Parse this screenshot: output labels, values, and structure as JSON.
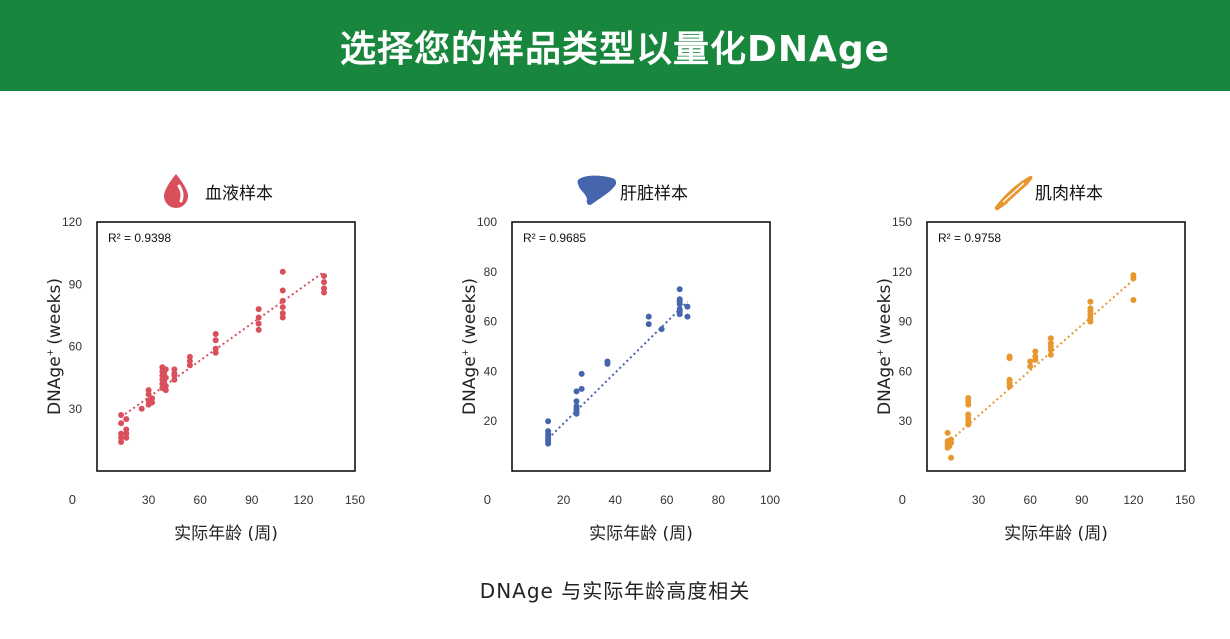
{
  "header": {
    "title": "选择您的样品类型以量化DNAge"
  },
  "caption": "DNAge  与实际年龄高度相关",
  "chart_data": [
    {
      "type": "scatter",
      "title": "血液样本",
      "icon": "blood-drop-icon",
      "color": "#d94f5c",
      "r2_label": "R² = 0.9398",
      "xlabel": "实际年龄 (周)",
      "ylabel": "DNAge",
      "ylabel_suffix": "(weeks)",
      "xlim": [
        0,
        150
      ],
      "ylim": [
        0,
        120
      ],
      "x_origin_label": "0",
      "xticks": [
        30,
        60,
        90,
        120,
        150
      ],
      "yticks": [
        30,
        60,
        90,
        120
      ],
      "trendline": [
        [
          14,
          26
        ],
        [
          132,
          96
        ]
      ],
      "points": [
        [
          14,
          27
        ],
        [
          14,
          23
        ],
        [
          14,
          18
        ],
        [
          14,
          16
        ],
        [
          14,
          14
        ],
        [
          17,
          25
        ],
        [
          17,
          20
        ],
        [
          17,
          18
        ],
        [
          17,
          16
        ],
        [
          26,
          30
        ],
        [
          30,
          39
        ],
        [
          30,
          37
        ],
        [
          30,
          34
        ],
        [
          30,
          32
        ],
        [
          32,
          35
        ],
        [
          32,
          33
        ],
        [
          38,
          50
        ],
        [
          38,
          48
        ],
        [
          38,
          46
        ],
        [
          38,
          44
        ],
        [
          38,
          42
        ],
        [
          38,
          40
        ],
        [
          39,
          47
        ],
        [
          39,
          43
        ],
        [
          39,
          41
        ],
        [
          40,
          49
        ],
        [
          40,
          45
        ],
        [
          40,
          41
        ],
        [
          40,
          39
        ],
        [
          45,
          49
        ],
        [
          45,
          47
        ],
        [
          45,
          46
        ],
        [
          45,
          44
        ],
        [
          54,
          55
        ],
        [
          54,
          53
        ],
        [
          54,
          51
        ],
        [
          69,
          66
        ],
        [
          69,
          63
        ],
        [
          69,
          59
        ],
        [
          69,
          57
        ],
        [
          94,
          78
        ],
        [
          94,
          74
        ],
        [
          94,
          71
        ],
        [
          94,
          68
        ],
        [
          108,
          96
        ],
        [
          108,
          87
        ],
        [
          108,
          82
        ],
        [
          108,
          79
        ],
        [
          108,
          76
        ],
        [
          108,
          74
        ],
        [
          132,
          94
        ],
        [
          132,
          91
        ],
        [
          132,
          88
        ],
        [
          132,
          86
        ]
      ]
    },
    {
      "type": "scatter",
      "title": "肝脏样本",
      "icon": "liver-icon",
      "color": "#4565ad",
      "r2_label": "R² = 0.9685",
      "xlabel": "实际年龄 (周)",
      "ylabel": "DNAge",
      "ylabel_suffix": "(weeks)",
      "xlim": [
        0,
        100
      ],
      "ylim": [
        0,
        100
      ],
      "x_origin_label": "0",
      "xticks": [
        20,
        40,
        60,
        80,
        100
      ],
      "yticks": [
        20,
        40,
        60,
        80,
        100
      ],
      "trendline": [
        [
          14,
          13
        ],
        [
          68,
          68
        ]
      ],
      "points": [
        [
          14,
          20
        ],
        [
          14,
          16
        ],
        [
          14,
          15
        ],
        [
          14,
          14
        ],
        [
          14,
          13
        ],
        [
          14,
          12
        ],
        [
          14,
          11
        ],
        [
          25,
          32
        ],
        [
          25,
          28
        ],
        [
          25,
          26
        ],
        [
          25,
          25
        ],
        [
          25,
          24
        ],
        [
          25,
          23
        ],
        [
          27,
          39
        ],
        [
          27,
          33
        ],
        [
          37,
          44
        ],
        [
          37,
          43
        ],
        [
          53,
          62
        ],
        [
          53,
          59
        ],
        [
          58,
          57
        ],
        [
          65,
          73
        ],
        [
          65,
          69
        ],
        [
          65,
          68
        ],
        [
          65,
          67
        ],
        [
          65,
          65
        ],
        [
          65,
          64
        ],
        [
          65,
          63
        ],
        [
          68,
          66
        ],
        [
          68,
          62
        ]
      ]
    },
    {
      "type": "scatter",
      "title": "肌肉样本",
      "icon": "muscle-icon",
      "color": "#e8962e",
      "r2_label": "R² = 0.9758",
      "xlabel": "实际年龄 (周)",
      "ylabel": "DNAge",
      "ylabel_suffix": "(weeks)",
      "xlim": [
        0,
        150
      ],
      "ylim": [
        0,
        150
      ],
      "x_origin_label": "0",
      "xticks": [
        30,
        60,
        90,
        120,
        150
      ],
      "yticks": [
        30,
        60,
        90,
        120,
        150
      ],
      "trendline": [
        [
          12,
          17
        ],
        [
          121,
          116
        ]
      ],
      "points": [
        [
          12,
          23
        ],
        [
          12,
          18
        ],
        [
          12,
          16
        ],
        [
          12,
          14
        ],
        [
          13,
          15
        ],
        [
          14,
          19
        ],
        [
          14,
          17
        ],
        [
          14,
          8
        ],
        [
          24,
          44
        ],
        [
          24,
          42
        ],
        [
          24,
          40
        ],
        [
          24,
          34
        ],
        [
          24,
          32
        ],
        [
          24,
          30
        ],
        [
          24,
          28
        ],
        [
          48,
          69
        ],
        [
          48,
          68
        ],
        [
          48,
          55
        ],
        [
          48,
          53
        ],
        [
          48,
          51
        ],
        [
          60,
          66
        ],
        [
          60,
          63
        ],
        [
          63,
          72
        ],
        [
          63,
          69
        ],
        [
          63,
          67
        ],
        [
          72,
          80
        ],
        [
          72,
          77
        ],
        [
          72,
          75
        ],
        [
          72,
          73
        ],
        [
          72,
          70
        ],
        [
          95,
          102
        ],
        [
          95,
          98
        ],
        [
          95,
          96
        ],
        [
          95,
          94
        ],
        [
          95,
          92
        ],
        [
          95,
          90
        ],
        [
          120,
          118
        ],
        [
          120,
          116
        ],
        [
          120,
          103
        ]
      ]
    }
  ]
}
